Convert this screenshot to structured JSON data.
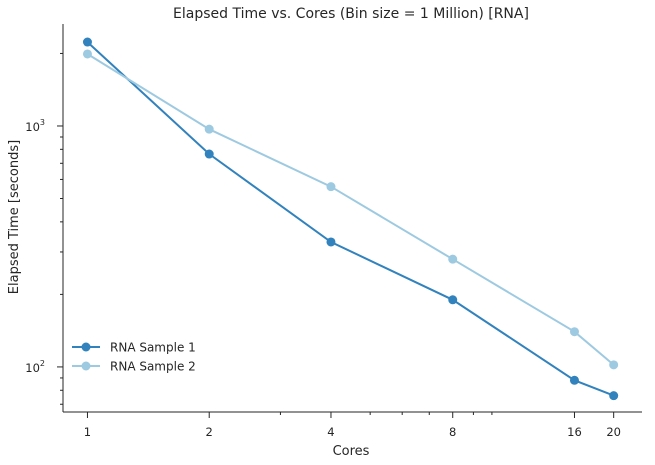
{
  "chart_data": {
    "type": "line",
    "title": "Elapsed Time vs. Cores (Bin size = 1 Million) [RNA]",
    "xlabel": "Cores",
    "ylabel": "Elapsed Time [seconds]",
    "x_scale": "log",
    "y_scale": "log",
    "x": [
      1,
      2,
      4,
      8,
      16,
      20
    ],
    "xticks": [
      "1",
      "2",
      "4",
      "8",
      "16",
      "20"
    ],
    "yticks": [
      {
        "value": 100,
        "base": "10",
        "exp": "2"
      },
      {
        "value": 1000,
        "base": "10",
        "exp": "3"
      }
    ],
    "xlim": [
      0.87,
      23.5
    ],
    "ylim": [
      65,
      2650
    ],
    "grid": false,
    "legend_position": "bottom-left",
    "series": [
      {
        "name": "RNA Sample 1",
        "color": "#3182bd",
        "values": [
          2230,
          765,
          330,
          190,
          88,
          76
        ]
      },
      {
        "name": "RNA Sample 2",
        "color": "#9ecae1",
        "values": [
          1990,
          970,
          560,
          280,
          140,
          102
        ]
      }
    ]
  }
}
